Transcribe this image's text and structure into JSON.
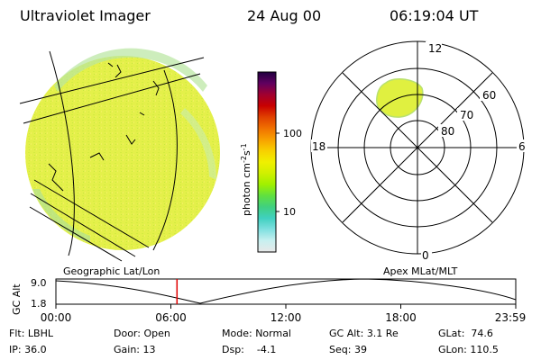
{
  "header": {
    "instrument": "Ultraviolet Imager",
    "date": "24 Aug 00",
    "time": "06:19:04 UT"
  },
  "colorbar": {
    "label": "photon cm",
    "label_sup1": "-2",
    "label_mid": "s",
    "label_sup2": "-1",
    "ticks": [
      "100",
      "10"
    ],
    "colors": [
      "#e8e8e8",
      "#c8f0f0",
      "#80e0e0",
      "#40d0c0",
      "#40d080",
      "#60e040",
      "#a0f000",
      "#d0f000",
      "#f0f000",
      "#f8d000",
      "#f8a000",
      "#f07000",
      "#e04000",
      "#c80000",
      "#a00030",
      "#600060",
      "#200040"
    ]
  },
  "polar_plot": {
    "lat_labels": [
      "80",
      "70",
      "60"
    ],
    "mlt_labels": {
      "top": "12",
      "bottom": "0",
      "left": "18",
      "right": "6"
    }
  },
  "timeline": {
    "left_title": "Geographic Lat/Lon",
    "right_title": "Apex MLat/MLT",
    "y_axis_label": "GC Alt",
    "y_ticks": [
      "9.0",
      "1.8"
    ],
    "x_ticks": [
      "00:00",
      "06:00",
      "12:00",
      "18:00",
      "23:59"
    ],
    "current_time_marker_hours": 6.32
  },
  "status": {
    "flt_label": "Flt:",
    "flt_value": "LBHL",
    "ip_label": "IP:",
    "ip_value": "36.0",
    "door_label": "Door:",
    "door_value": "Open",
    "gain_label": "Gain:",
    "gain_value": "13",
    "mode_label": "Mode:",
    "mode_value": "Normal",
    "dsp_label": "Dsp:",
    "dsp_value": "-4.1",
    "gcalt_label": "GC Alt:",
    "gcalt_value": "3.1 Re",
    "seq_label": "Seq:",
    "seq_value": "39",
    "glat_label": "GLat:",
    "glat_value": "74.6",
    "glon_label": "GLon:",
    "glon_value": "110.5"
  }
}
